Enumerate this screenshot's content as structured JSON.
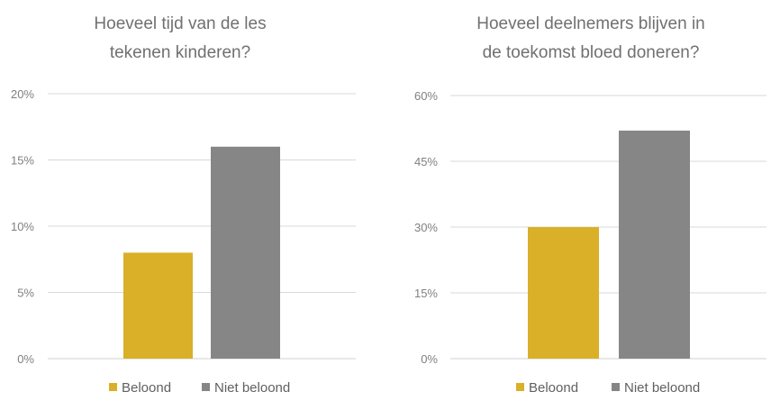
{
  "chart_data": [
    {
      "type": "bar",
      "title_lines": [
        "Hoeveel tijd van de les",
        "tekenen kinderen?"
      ],
      "categories": [
        "Beloond",
        "Niet beloond"
      ],
      "values": [
        8,
        16
      ],
      "unit": "%",
      "ylim": [
        0,
        20
      ],
      "yticks": [
        0,
        5,
        10,
        15,
        20
      ],
      "ytick_labels": [
        "0%",
        "5%",
        "10%",
        "15%",
        "20%"
      ],
      "grid": true,
      "legend_position": "bottom",
      "legend": [
        "Beloond",
        "Niet beloond"
      ]
    },
    {
      "type": "bar",
      "title_lines": [
        "Hoeveel deelnemers blijven in",
        "de toekomst bloed doneren?"
      ],
      "categories": [
        "Beloond",
        "Niet beloond"
      ],
      "values": [
        30,
        52
      ],
      "unit": "%",
      "ylim": [
        0,
        60
      ],
      "yticks": [
        0,
        15,
        30,
        45,
        60
      ],
      "ytick_labels": [
        "0%",
        "15%",
        "30%",
        "45%",
        "60%"
      ],
      "grid": true,
      "legend_position": "bottom",
      "legend": [
        "Beloond",
        "Niet beloond"
      ]
    }
  ],
  "colors": {
    "Beloond": "#D9B027",
    "Niet beloond": "#868686"
  }
}
